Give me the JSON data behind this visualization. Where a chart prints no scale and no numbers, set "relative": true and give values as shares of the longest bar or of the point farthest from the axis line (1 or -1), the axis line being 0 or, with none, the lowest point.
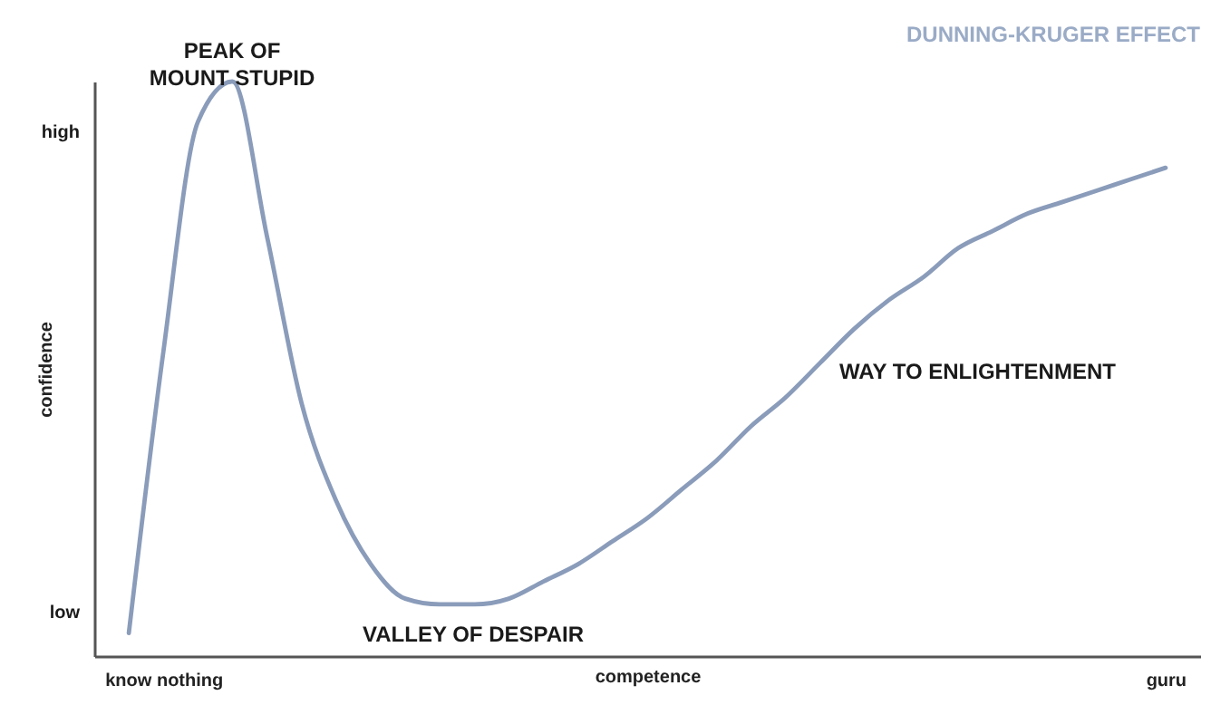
{
  "chart_data": {
    "type": "line",
    "title": "DUNNING-KRUGER EFFECT",
    "xlabel": "competence",
    "ylabel": "confidence",
    "relative": true,
    "categories": [
      null,
      "know nothing",
      null,
      null,
      null,
      null,
      null,
      null,
      null,
      null,
      null,
      null,
      null,
      null,
      null,
      null,
      null,
      null,
      null,
      null,
      null,
      null,
      null,
      null,
      null,
      null,
      null,
      null,
      null,
      null,
      "guru"
    ],
    "series": [
      {
        "color": "#8a9cba",
        "values": [
          0.04,
          0.53,
          0.93,
          1,
          0.73,
          0.44,
          0.27,
          0.16,
          0.1,
          0.09,
          0.09,
          0.1,
          0.13,
          0.16,
          0.2,
          0.24,
          0.29,
          0.34,
          0.4,
          0.45,
          0.51,
          0.57,
          0.62,
          0.66,
          0.71,
          0.74,
          0.77,
          0.79,
          0.81,
          0.83,
          0.85
        ]
      }
    ],
    "annotations": [
      "PEAK OF\nMOUNT STUPID",
      "VALLEY OF DESPAIR",
      "WAY TO ENLIGHTENMENT",
      "low",
      "high"
    ],
    "grid": false,
    "marker": "none",
    "line_style": "solid"
  }
}
